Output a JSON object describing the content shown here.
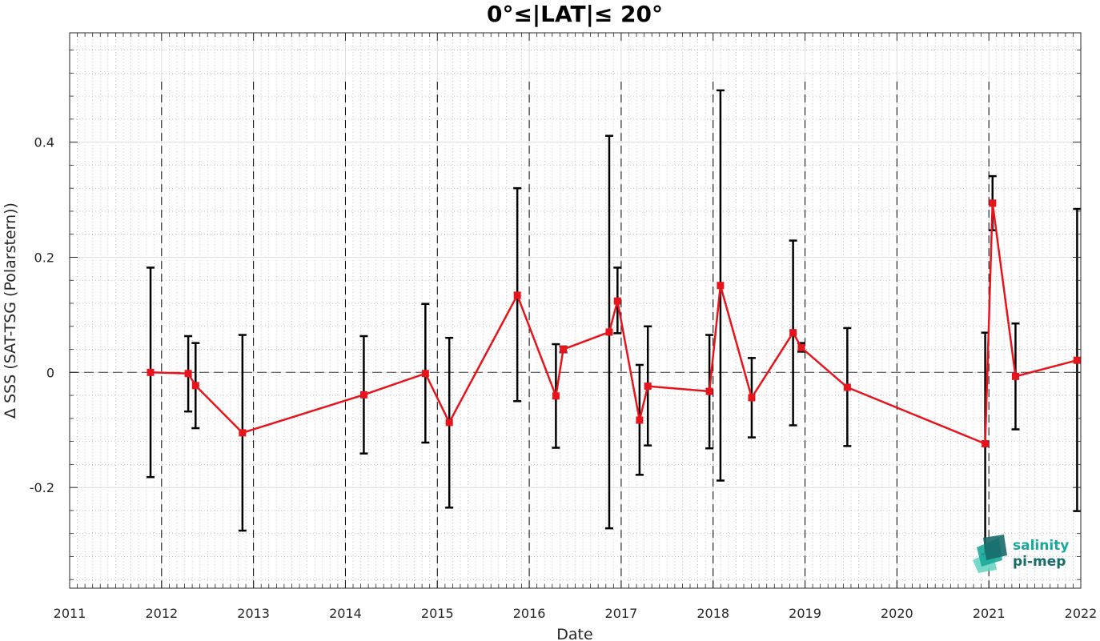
{
  "chart_data": {
    "type": "line",
    "title": "0°≤|LAT|≤ 20°",
    "xlabel": "Date",
    "ylabel": "Δ SSS (SAT-TSG (Polarstern))",
    "xlim": [
      2011.0,
      2022.0
    ],
    "ylim": [
      -0.375,
      0.59
    ],
    "x_ticks": [
      "2011",
      "2012",
      "2013",
      "2014",
      "2015",
      "2016",
      "2017",
      "2018",
      "2019",
      "2020",
      "2021",
      "2022"
    ],
    "y_ticks": [
      "-0.2",
      "0",
      "0.2",
      "0.4"
    ],
    "y_tick_values": [
      -0.2,
      0,
      0.2,
      0.4
    ],
    "year_boundaries": [
      2012,
      2013,
      2014,
      2015,
      2016,
      2017,
      2018,
      2019,
      2020,
      2021
    ],
    "zero_line": 0,
    "grid": true,
    "series": [
      {
        "line_color": "#e8141c",
        "errorbar_color": "#000000",
        "points": [
          {
            "x": 2011.88,
            "y": 0.0,
            "lo": -0.182,
            "hi": 0.182
          },
          {
            "x": 2012.29,
            "y": -0.002,
            "lo": -0.068,
            "hi": 0.063
          },
          {
            "x": 2012.37,
            "y": -0.023,
            "lo": -0.097,
            "hi": 0.051
          },
          {
            "x": 2012.88,
            "y": -0.105,
            "lo": -0.275,
            "hi": 0.065
          },
          {
            "x": 2014.2,
            "y": -0.039,
            "lo": -0.141,
            "hi": 0.063
          },
          {
            "x": 2014.87,
            "y": -0.002,
            "lo": -0.122,
            "hi": 0.119
          },
          {
            "x": 2015.13,
            "y": -0.087,
            "lo": -0.235,
            "hi": 0.06
          },
          {
            "x": 2015.87,
            "y": 0.134,
            "lo": -0.05,
            "hi": 0.32
          },
          {
            "x": 2016.29,
            "y": -0.041,
            "lo": -0.131,
            "hi": 0.049
          },
          {
            "x": 2016.37,
            "y": 0.04,
            "lo": 0.035,
            "hi": 0.045
          },
          {
            "x": 2016.87,
            "y": 0.07,
            "lo": -0.271,
            "hi": 0.411
          },
          {
            "x": 2016.96,
            "y": 0.124,
            "lo": 0.068,
            "hi": 0.182
          },
          {
            "x": 2017.2,
            "y": -0.083,
            "lo": -0.178,
            "hi": 0.013
          },
          {
            "x": 2017.29,
            "y": -0.024,
            "lo": -0.127,
            "hi": 0.08
          },
          {
            "x": 2017.96,
            "y": -0.033,
            "lo": -0.132,
            "hi": 0.065
          },
          {
            "x": 2018.08,
            "y": 0.151,
            "lo": -0.188,
            "hi": 0.49
          },
          {
            "x": 2018.42,
            "y": -0.044,
            "lo": -0.113,
            "hi": 0.025
          },
          {
            "x": 2018.87,
            "y": 0.069,
            "lo": -0.092,
            "hi": 0.229
          },
          {
            "x": 2018.96,
            "y": 0.043,
            "lo": 0.036,
            "hi": 0.051
          },
          {
            "x": 2019.46,
            "y": -0.026,
            "lo": -0.128,
            "hi": 0.077
          },
          {
            "x": 2020.96,
            "y": -0.124,
            "lo": -0.316,
            "hi": 0.069
          },
          {
            "x": 2021.04,
            "y": 0.294,
            "lo": 0.247,
            "hi": 0.341
          },
          {
            "x": 2021.29,
            "y": -0.007,
            "lo": -0.099,
            "hi": 0.085
          },
          {
            "x": 2021.96,
            "y": 0.021,
            "lo": -0.241,
            "hi": 0.284
          }
        ]
      }
    ]
  },
  "logo": {
    "line1": "salinity",
    "line2": "pi-mep",
    "colors": {
      "teal": "#1aa89a",
      "dark": "#176b6a",
      "light": "#5fd3c0"
    }
  }
}
